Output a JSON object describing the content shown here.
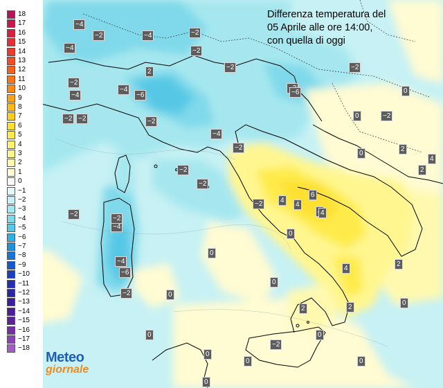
{
  "title": {
    "line1": "Differenza temperatura del",
    "line2": "05 Aprile alle ore 14:00,",
    "line3": "con quella di oggi"
  },
  "legend": [
    {
      "label": "18",
      "color": "#b3155a"
    },
    {
      "label": "17",
      "color": "#c8174d"
    },
    {
      "label": "16",
      "color": "#d91f3f"
    },
    {
      "label": "15",
      "color": "#e62e35"
    },
    {
      "label": "14",
      "color": "#ee3a2c"
    },
    {
      "label": "13",
      "color": "#f24e25"
    },
    {
      "label": "12",
      "color": "#f5621e"
    },
    {
      "label": "11",
      "color": "#f77619"
    },
    {
      "label": "10",
      "color": "#f98c17"
    },
    {
      "label": "9",
      "color": "#fba319"
    },
    {
      "label": "8",
      "color": "#fcb91c"
    },
    {
      "label": "7",
      "color": "#fdcd20"
    },
    {
      "label": "6",
      "color": "#fde030"
    },
    {
      "label": "5",
      "color": "#feeb4b"
    },
    {
      "label": "4",
      "color": "#fff26d"
    },
    {
      "label": "3",
      "color": "#fff690"
    },
    {
      "label": "2",
      "color": "#fff9b0"
    },
    {
      "label": "1",
      "color": "#fffbd2"
    },
    {
      "label": "0",
      "color": "#ffffff"
    },
    {
      "label": "−1",
      "color": "#e3f8f8"
    },
    {
      "label": "−2",
      "color": "#c7f1f4"
    },
    {
      "label": "−3",
      "color": "#a6e7ef"
    },
    {
      "label": "−4",
      "color": "#7fd9ea"
    },
    {
      "label": "−5",
      "color": "#57c8e6"
    },
    {
      "label": "−6",
      "color": "#33b0e2"
    },
    {
      "label": "−7",
      "color": "#1d93dd"
    },
    {
      "label": "−8",
      "color": "#1675d6"
    },
    {
      "label": "−9",
      "color": "#1659cd"
    },
    {
      "label": "−10",
      "color": "#1a40c2"
    },
    {
      "label": "−11",
      "color": "#2230b4"
    },
    {
      "label": "−12",
      "color": "#2a24a6"
    },
    {
      "label": "−13",
      "color": "#3a1e9e"
    },
    {
      "label": "−14",
      "color": "#4b1e98"
    },
    {
      "label": "−15",
      "color": "#5f2296"
    },
    {
      "label": "−16",
      "color": "#7330a0"
    },
    {
      "label": "−17",
      "color": "#8a44b0"
    },
    {
      "label": "−18",
      "color": "#a35ec2"
    }
  ],
  "values": [
    "−4",
    "−2",
    "−4",
    "−2",
    "−4",
    "−2",
    "−2",
    "2",
    "−2",
    "0",
    "−2",
    "−2",
    "−4",
    "−6",
    "−4",
    "−6",
    "−2",
    "−2",
    "−4",
    "−2",
    "−2",
    "−2",
    "0",
    "−2",
    "0",
    "−2",
    "−2",
    "2",
    "0",
    "2",
    "4",
    "−2",
    "4",
    "0",
    "4",
    "4",
    "6",
    "4",
    "−4",
    "−2",
    "−4",
    "−6",
    "−2",
    "0",
    "0",
    "0",
    "4",
    "2",
    "2",
    "0",
    "2",
    "0",
    "0",
    "−2",
    "0",
    "0",
    "0",
    "0"
  ],
  "logo": {
    "line1": "Meteo",
    "line2": "giornale"
  }
}
